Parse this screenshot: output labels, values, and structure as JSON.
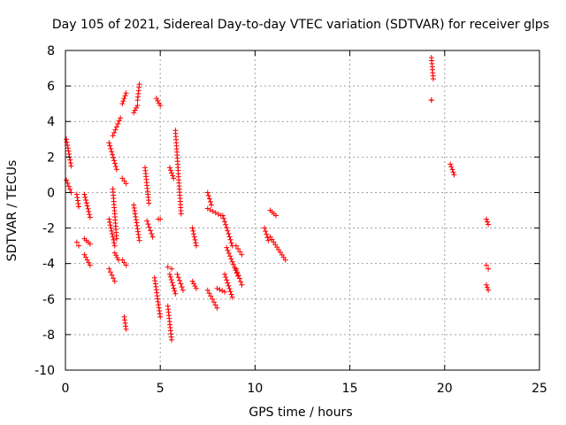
{
  "chart_data": {
    "type": "scatter",
    "title": "Day 105 of 2021, Sidereal Day-to-day VTEC variation (SDTVAR) for receiver glps",
    "xlabel": "GPS time / hours",
    "ylabel": "SDTVAR / TECUs",
    "xlim": [
      0,
      25
    ],
    "ylim": [
      -10,
      8
    ],
    "grid": true,
    "marker": "+",
    "marker_color": "#ff0000",
    "x_ticks": [
      0,
      5,
      10,
      15,
      20,
      25
    ],
    "y_ticks": [
      -10,
      -8,
      -6,
      -4,
      -2,
      0,
      2,
      4,
      6,
      8
    ],
    "x_tick_labels": [
      "0",
      "5",
      "10",
      "15",
      "20",
      "25"
    ],
    "y_tick_labels": [
      "-10",
      "-8",
      "-6",
      "-4",
      "-2",
      "0",
      "2",
      "4",
      "6",
      "8"
    ],
    "series": [
      {
        "name": "glps",
        "segments": [
          {
            "x": [
              0.05,
              0.3
            ],
            "y": [
              3.0,
              1.5
            ]
          },
          {
            "x": [
              0.05,
              0.3
            ],
            "y": [
              0.7,
              0.0
            ]
          },
          {
            "x": [
              0.6,
              0.7
            ],
            "y": [
              -0.1,
              -0.8
            ]
          },
          {
            "x": [
              0.6,
              0.7
            ],
            "y": [
              -2.8,
              -3.0
            ]
          },
          {
            "x": [
              1.0,
              1.3
            ],
            "y": [
              -0.1,
              -1.4
            ]
          },
          {
            "x": [
              1.0,
              1.3
            ],
            "y": [
              -2.6,
              -2.9
            ]
          },
          {
            "x": [
              1.0,
              1.3
            ],
            "y": [
              -3.5,
              -4.1
            ]
          },
          {
            "x": [
              2.3,
              2.7
            ],
            "y": [
              2.8,
              1.3
            ]
          },
          {
            "x": [
              2.3,
              2.6
            ],
            "y": [
              -1.5,
              -3.0
            ]
          },
          {
            "x": [
              2.3,
              2.6
            ],
            "y": [
              -4.3,
              -5.0
            ]
          },
          {
            "x": [
              2.5,
              2.7
            ],
            "y": [
              0.2,
              -2.6
            ]
          },
          {
            "x": [
              2.6,
              2.8
            ],
            "y": [
              -3.4,
              -3.8
            ]
          },
          {
            "x": [
              2.5,
              2.9
            ],
            "y": [
              3.2,
              4.2
            ]
          },
          {
            "x": [
              3.0,
              3.2
            ],
            "y": [
              5.0,
              5.6
            ]
          },
          {
            "x": [
              3.0,
              3.2
            ],
            "y": [
              0.8,
              0.5
            ]
          },
          {
            "x": [
              3.0,
              3.2
            ],
            "y": [
              -3.8,
              -4.1
            ]
          },
          {
            "x": [
              3.1,
              3.2
            ],
            "y": [
              -7.0,
              -7.7
            ]
          },
          {
            "x": [
              3.6,
              3.8
            ],
            "y": [
              4.5,
              4.9
            ]
          },
          {
            "x": [
              3.8,
              3.9
            ],
            "y": [
              5.2,
              6.1
            ]
          },
          {
            "x": [
              3.6,
              3.9
            ],
            "y": [
              -0.7,
              -2.7
            ]
          },
          {
            "x": [
              4.2,
              4.4
            ],
            "y": [
              1.4,
              -0.6
            ]
          },
          {
            "x": [
              4.3,
              4.6
            ],
            "y": [
              -1.6,
              -2.5
            ]
          },
          {
            "x": [
              4.8,
              5.0
            ],
            "y": [
              5.3,
              4.9
            ]
          },
          {
            "x": [
              4.9,
              5.0
            ],
            "y": [
              -1.5,
              -1.5
            ]
          },
          {
            "x": [
              4.7,
              5.0
            ],
            "y": [
              -4.8,
              -7.0
            ]
          },
          {
            "x": [
              5.4,
              5.6
            ],
            "y": [
              -4.2,
              -4.3
            ]
          },
          {
            "x": [
              5.4,
              5.6
            ],
            "y": [
              -6.4,
              -8.3
            ]
          },
          {
            "x": [
              5.5,
              5.7
            ],
            "y": [
              1.4,
              0.8
            ]
          },
          {
            "x": [
              5.5,
              5.8
            ],
            "y": [
              -4.6,
              -5.7
            ]
          },
          {
            "x": [
              5.8,
              6.1
            ],
            "y": [
              3.5,
              -1.2
            ]
          },
          {
            "x": [
              5.9,
              6.2
            ],
            "y": [
              -4.6,
              -5.5
            ]
          },
          {
            "x": [
              6.7,
              6.9
            ],
            "y": [
              -2.0,
              -3.0
            ]
          },
          {
            "x": [
              6.7,
              6.9
            ],
            "y": [
              -5.0,
              -5.4
            ]
          },
          {
            "x": [
              7.5,
              7.7
            ],
            "y": [
              0.0,
              -0.7
            ]
          },
          {
            "x": [
              7.5,
              8.2
            ],
            "y": [
              -0.9,
              -1.3
            ]
          },
          {
            "x": [
              7.5,
              8.0
            ],
            "y": [
              -5.5,
              -6.5
            ]
          },
          {
            "x": [
              8.0,
              8.4
            ],
            "y": [
              -5.4,
              -5.6
            ]
          },
          {
            "x": [
              8.3,
              8.8
            ],
            "y": [
              -1.3,
              -3.0
            ]
          },
          {
            "x": [
              8.5,
              9.1
            ],
            "y": [
              -3.1,
              -4.7
            ]
          },
          {
            "x": [
              8.4,
              8.8
            ],
            "y": [
              -4.6,
              -5.9
            ]
          },
          {
            "x": [
              9.0,
              9.3
            ],
            "y": [
              -3.0,
              -3.5
            ]
          },
          {
            "x": [
              9.0,
              9.3
            ],
            "y": [
              -4.3,
              -5.2
            ]
          },
          {
            "x": [
              10.5,
              10.7
            ],
            "y": [
              -2.0,
              -2.7
            ]
          },
          {
            "x": [
              10.8,
              11.1
            ],
            "y": [
              -1.0,
              -1.3
            ]
          },
          {
            "x": [
              10.8,
              11.6
            ],
            "y": [
              -2.5,
              -3.8
            ]
          },
          {
            "x": [
              19.3,
              19.4
            ],
            "y": [
              7.6,
              6.4
            ]
          },
          {
            "x": [
              19.3,
              19.3
            ],
            "y": [
              5.2,
              5.2
            ]
          },
          {
            "x": [
              20.3,
              20.5
            ],
            "y": [
              1.6,
              1.0
            ]
          },
          {
            "x": [
              22.2,
              22.3
            ],
            "y": [
              -1.5,
              -1.8
            ]
          },
          {
            "x": [
              22.2,
              22.3
            ],
            "y": [
              -4.1,
              -4.3
            ]
          },
          {
            "x": [
              22.2,
              22.3
            ],
            "y": [
              -5.2,
              -5.5
            ]
          }
        ]
      }
    ]
  }
}
